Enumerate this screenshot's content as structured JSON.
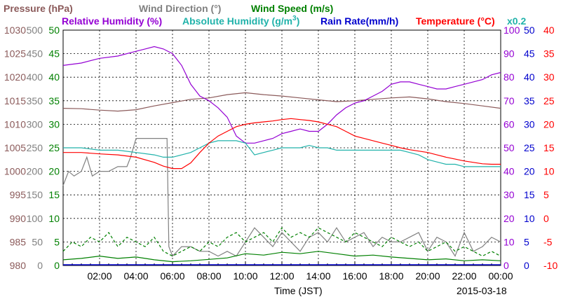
{
  "chart_data": {
    "type": "line",
    "date_label": "2015-03-18",
    "xlabel": "Time (JST)",
    "x_ticks": [
      "02:00",
      "04:00",
      "06:00",
      "08:00",
      "10:00",
      "12:00",
      "14:00",
      "16:00",
      "18:00",
      "20:00",
      "22:00",
      "00:00"
    ],
    "x_range_hours": [
      0,
      24
    ],
    "legend": [
      {
        "name": "Pressure (hPa)",
        "color": "#8b5a5a"
      },
      {
        "name": "Wind Direction (°)",
        "color": "#808080"
      },
      {
        "name": "Wind Speed (m/s)",
        "color": "#008000"
      },
      {
        "name": "Relative Humidity (%)",
        "color": "#9400d3"
      },
      {
        "name": "Absolute Humidity (g/m",
        "sup": "3",
        "close": ")",
        "color": "#20b2aa"
      },
      {
        "name": "Rain Rate(mm/h)",
        "color": "#0000cd"
      },
      {
        "name": "Temperature (°C)",
        "color": "#ff0000"
      },
      {
        "name": "x0.2",
        "color": "#20b2aa"
      }
    ],
    "axes": {
      "pressure": {
        "color": "#8b5a5a",
        "range": [
          980,
          1030
        ],
        "ticks": [
          "1030",
          "1025",
          "1020",
          "1015",
          "1010",
          "1005",
          "1000",
          "995",
          "990",
          "985",
          "980"
        ]
      },
      "wind_direction": {
        "color": "#808080",
        "range": [
          0,
          500
        ],
        "ticks": [
          "500",
          "450",
          "400",
          "350",
          "300",
          "250",
          "200",
          "150",
          "100",
          "50",
          "0"
        ]
      },
      "wind_speed": {
        "color": "#008000",
        "range": [
          0,
          50
        ],
        "ticks": [
          "50",
          "45",
          "40",
          "35",
          "30",
          "25",
          "20",
          "15",
          "10",
          "5",
          "0"
        ]
      },
      "relative_humidity": {
        "color": "#9400d3",
        "range": [
          0,
          100
        ],
        "ticks": [
          "100",
          "90",
          "80",
          "70",
          "60",
          "50",
          "40",
          "30",
          "20",
          "10",
          "0"
        ]
      },
      "rain_rate": {
        "color": "#0000cd",
        "range": [
          0,
          50
        ],
        "ticks": [
          "50",
          "45",
          "40",
          "35",
          "30",
          "25",
          "20",
          "15",
          "10",
          "5",
          "0"
        ]
      },
      "temperature": {
        "color": "#ff0000",
        "range": [
          -10,
          40
        ],
        "ticks": [
          "40",
          "35",
          "30",
          "25",
          "20",
          "15",
          "10",
          "5",
          "0",
          "-5",
          "-10"
        ]
      }
    },
    "series": [
      {
        "name": "Pressure (hPa)",
        "axis": "pressure",
        "color": "#8b5a5a",
        "x": [
          0,
          1,
          2,
          3,
          4,
          5,
          6,
          7,
          8,
          9,
          10,
          11,
          12,
          13,
          14,
          15,
          16,
          17,
          18,
          19,
          20,
          21,
          22,
          23,
          24
        ],
        "y": [
          1013.4,
          1013.3,
          1013.0,
          1012.8,
          1013.1,
          1013.9,
          1014.6,
          1015.3,
          1015.6,
          1016.3,
          1016.7,
          1016.3,
          1016.0,
          1015.6,
          1015.2,
          1014.8,
          1015.0,
          1015.3,
          1015.6,
          1015.8,
          1015.4,
          1014.8,
          1014.4,
          1013.9,
          1013.4
        ]
      },
      {
        "name": "Wind Direction (°)",
        "axis": "wind_direction",
        "color": "#808080",
        "x": [
          0,
          0.3,
          0.6,
          1,
          1.3,
          1.6,
          2,
          2.5,
          3,
          3.5,
          3.7,
          4,
          5,
          5.7,
          5.8,
          6,
          6.5,
          7,
          7.5,
          8,
          8.5,
          9,
          9.5,
          10,
          10.5,
          11,
          11.5,
          12,
          12.5,
          13,
          13.5,
          14,
          14.5,
          15,
          15.5,
          16,
          16.5,
          17,
          17.5,
          18,
          18.5,
          19,
          19.5,
          20,
          20.5,
          21,
          21.5,
          22,
          22.5,
          23,
          23.5,
          24
        ],
        "y": [
          170,
          200,
          190,
          200,
          230,
          190,
          200,
          200,
          210,
          210,
          230,
          270,
          270,
          270,
          40,
          20,
          40,
          40,
          30,
          30,
          20,
          30,
          20,
          50,
          80,
          60,
          40,
          70,
          50,
          30,
          60,
          70,
          50,
          80,
          50,
          60,
          70,
          40,
          60,
          50,
          50,
          60,
          70,
          30,
          60,
          50,
          20,
          70,
          30,
          40,
          60,
          50
        ]
      },
      {
        "name": "Wind Speed (m/s)",
        "axis": "wind_speed",
        "color": "#008000",
        "x": [
          0,
          1,
          2,
          3,
          4,
          5,
          6,
          7,
          8,
          9,
          10,
          11,
          12,
          13,
          14,
          15,
          16,
          17,
          18,
          19,
          20,
          21,
          22,
          23,
          24
        ],
        "y": [
          1.2,
          1.5,
          2.0,
          1.5,
          1.8,
          1.2,
          0.8,
          1.0,
          1.3,
          1.6,
          2.5,
          2.2,
          2.8,
          2.5,
          3.0,
          2.5,
          2.0,
          2.2,
          1.8,
          1.5,
          1.2,
          1.4,
          1.0,
          1.2,
          1.0
        ]
      },
      {
        "name": "Wind Speed gust (m/s)",
        "axis": "wind_speed",
        "color": "#008000",
        "dashed": true,
        "x": [
          0,
          0.5,
          1,
          1.5,
          2,
          2.5,
          3,
          3.5,
          4,
          4.5,
          5,
          5.5,
          6,
          6.5,
          7,
          7.5,
          8,
          8.5,
          9,
          9.5,
          10,
          10.5,
          11,
          11.5,
          12,
          12.5,
          13,
          13.5,
          14,
          14.5,
          15,
          15.5,
          16,
          16.5,
          17,
          17.5,
          18,
          18.5,
          19,
          19.5,
          20,
          20.5,
          21,
          21.5,
          22,
          22.5,
          23,
          23.5,
          24
        ],
        "y": [
          3,
          5,
          4,
          6,
          5,
          7,
          4,
          6,
          5,
          4,
          6,
          3,
          2,
          3,
          4,
          3,
          5,
          4,
          6,
          7,
          5,
          6,
          7,
          5,
          8,
          6,
          7,
          6,
          8,
          7,
          6,
          5,
          7,
          6,
          5,
          4,
          6,
          5,
          4,
          5,
          3,
          4,
          5,
          3,
          4,
          3,
          2,
          3,
          2
        ]
      },
      {
        "name": "Relative Humidity (%)",
        "axis": "relative_humidity",
        "color": "#9400d3",
        "x": [
          0,
          1,
          2,
          3,
          4,
          4.5,
          5,
          5.5,
          6,
          6.5,
          7,
          7.5,
          8,
          8.5,
          9,
          9.5,
          10,
          10.5,
          11,
          11.5,
          12,
          12.5,
          13,
          13.5,
          14,
          14.5,
          15,
          15.5,
          16,
          16.5,
          17,
          17.5,
          18,
          18.5,
          19,
          19.5,
          20,
          20.5,
          21,
          21.5,
          22,
          22.5,
          23,
          23.5,
          24
        ],
        "y": [
          85,
          86,
          88,
          89,
          91,
          92,
          93,
          92,
          90,
          85,
          77,
          72,
          70,
          67,
          63,
          55,
          52,
          52,
          53,
          54,
          56,
          57,
          58,
          57,
          57,
          60,
          64,
          67,
          69,
          70,
          72,
          74,
          77,
          78,
          78,
          77,
          76,
          75,
          75,
          76,
          77,
          78,
          79,
          81,
          82
        ]
      },
      {
        "name": "Absolute Humidity (g/m3) x0.2",
        "axis": "relative_humidity",
        "color": "#20b2aa",
        "x": [
          0,
          1,
          2,
          3,
          4,
          5,
          5.5,
          6,
          6.5,
          7,
          7.5,
          8,
          8.5,
          9,
          9.5,
          10,
          10.5,
          11,
          11.5,
          12,
          12.5,
          13,
          13.5,
          14,
          14.5,
          15,
          15.5,
          16,
          16.5,
          17,
          17.5,
          18,
          18.5,
          19,
          19.5,
          20,
          20.5,
          21,
          21.5,
          22,
          22.5,
          23,
          23.5,
          24
        ],
        "y": [
          50,
          50,
          49,
          49,
          48,
          47,
          46,
          46,
          47,
          48,
          50,
          52,
          53,
          53,
          53,
          52,
          47,
          48,
          49,
          50,
          50,
          50,
          51,
          50,
          50,
          49,
          49,
          49,
          49,
          49,
          49,
          49,
          49,
          48,
          47,
          45,
          44,
          43,
          43,
          42,
          42,
          42,
          42,
          42
        ]
      },
      {
        "name": "Temperature (°C)",
        "axis": "temperature",
        "color": "#ff0000",
        "x": [
          0,
          1,
          2,
          3,
          4,
          5,
          5.5,
          6,
          6.5,
          7,
          7.5,
          8,
          8.5,
          9,
          9.5,
          10,
          10.5,
          11,
          11.5,
          12,
          12.5,
          13,
          13.5,
          14,
          14.5,
          15,
          15.5,
          16,
          16.5,
          17,
          17.5,
          18,
          18.5,
          19,
          19.5,
          20,
          20.5,
          21,
          21.5,
          22,
          22.5,
          23,
          23.5,
          24
        ],
        "y": [
          14,
          14,
          13.7,
          13.5,
          13,
          11.9,
          11.1,
          10.6,
          10.6,
          11.8,
          14,
          16,
          17.5,
          18.5,
          19.5,
          20,
          20.3,
          20.5,
          20.7,
          21,
          21.2,
          21,
          20.8,
          20.5,
          20,
          19.5,
          18.5,
          17.5,
          17,
          16.5,
          16,
          15.5,
          15,
          14.6,
          14.3,
          14,
          13.5,
          13,
          12.6,
          12.2,
          11.9,
          11.6,
          11.5,
          11.5
        ]
      }
    ],
    "rain_rate": {
      "axis": "rain_rate",
      "color": "#0000cd",
      "x": [
        0,
        24
      ],
      "y": [
        0,
        0
      ]
    }
  }
}
